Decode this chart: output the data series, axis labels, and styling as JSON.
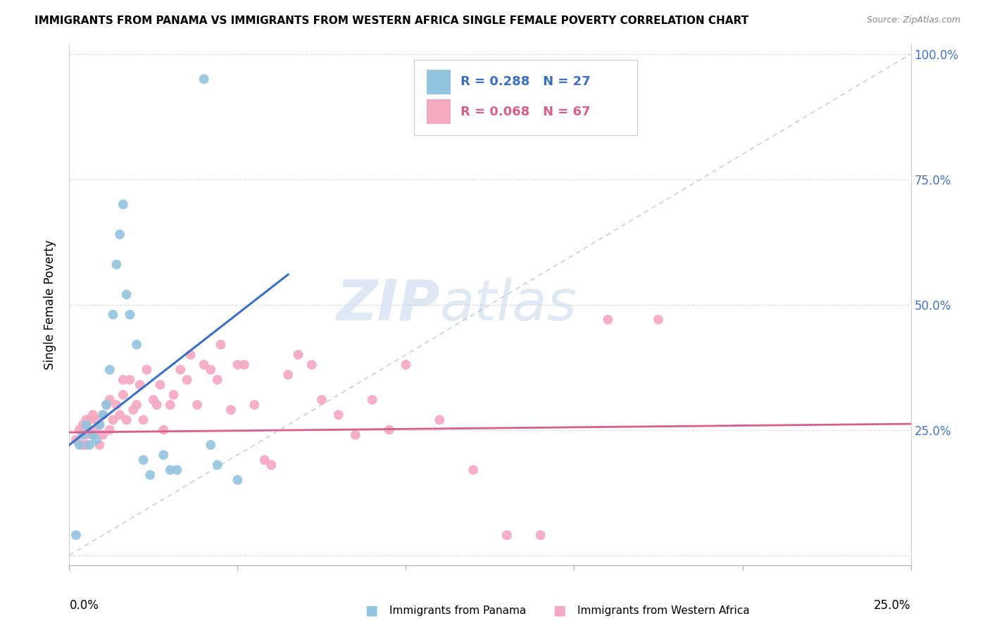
{
  "title": "IMMIGRANTS FROM PANAMA VS IMMIGRANTS FROM WESTERN AFRICA SINGLE FEMALE POVERTY CORRELATION CHART",
  "source": "Source: ZipAtlas.com",
  "ylabel": "Single Female Poverty",
  "legend_label1": "Immigrants from Panama",
  "legend_label2": "Immigrants from Western Africa",
  "legend_r1": "R = 0.288",
  "legend_n1": "N = 27",
  "legend_r2": "R = 0.068",
  "legend_n2": "N = 67",
  "watermark_zip": "ZIP",
  "watermark_atlas": "atlas",
  "xlim": [
    0.0,
    0.25
  ],
  "ylim": [
    -0.02,
    1.02
  ],
  "color_panama": "#93c4e0",
  "color_w_africa": "#f4a8bf",
  "color_line_panama": "#3a6fc4",
  "color_line_w_africa": "#d95f8a",
  "color_diagonal": "#b0b8d8",
  "panama_x": [
    0.002,
    0.003,
    0.004,
    0.005,
    0.006,
    0.007,
    0.008,
    0.009,
    0.01,
    0.011,
    0.012,
    0.013,
    0.014,
    0.015,
    0.016,
    0.017,
    0.018,
    0.02,
    0.022,
    0.024,
    0.028,
    0.03,
    0.032,
    0.04,
    0.042,
    0.044,
    0.05
  ],
  "panama_y": [
    0.04,
    0.22,
    0.24,
    0.26,
    0.22,
    0.24,
    0.23,
    0.26,
    0.28,
    0.3,
    0.37,
    0.48,
    0.58,
    0.64,
    0.7,
    0.52,
    0.48,
    0.42,
    0.19,
    0.16,
    0.2,
    0.17,
    0.17,
    0.95,
    0.22,
    0.18,
    0.15
  ],
  "w_africa_x": [
    0.002,
    0.003,
    0.004,
    0.004,
    0.005,
    0.005,
    0.005,
    0.006,
    0.006,
    0.007,
    0.007,
    0.008,
    0.008,
    0.009,
    0.009,
    0.01,
    0.01,
    0.011,
    0.012,
    0.012,
    0.013,
    0.014,
    0.015,
    0.016,
    0.016,
    0.017,
    0.018,
    0.019,
    0.02,
    0.021,
    0.022,
    0.023,
    0.025,
    0.026,
    0.027,
    0.028,
    0.03,
    0.031,
    0.033,
    0.035,
    0.036,
    0.038,
    0.04,
    0.042,
    0.044,
    0.045,
    0.048,
    0.05,
    0.052,
    0.055,
    0.058,
    0.06,
    0.065,
    0.068,
    0.072,
    0.075,
    0.08,
    0.085,
    0.09,
    0.095,
    0.1,
    0.11,
    0.12,
    0.13,
    0.14,
    0.16,
    0.175
  ],
  "w_africa_y": [
    0.23,
    0.25,
    0.22,
    0.26,
    0.24,
    0.27,
    0.22,
    0.25,
    0.27,
    0.24,
    0.28,
    0.25,
    0.27,
    0.22,
    0.26,
    0.24,
    0.28,
    0.3,
    0.25,
    0.31,
    0.27,
    0.3,
    0.28,
    0.32,
    0.35,
    0.27,
    0.35,
    0.29,
    0.3,
    0.34,
    0.27,
    0.37,
    0.31,
    0.3,
    0.34,
    0.25,
    0.3,
    0.32,
    0.37,
    0.35,
    0.4,
    0.3,
    0.38,
    0.37,
    0.35,
    0.42,
    0.29,
    0.38,
    0.38,
    0.3,
    0.19,
    0.18,
    0.36,
    0.4,
    0.38,
    0.31,
    0.28,
    0.24,
    0.31,
    0.25,
    0.38,
    0.27,
    0.17,
    0.04,
    0.04,
    0.47,
    0.47
  ],
  "panama_line_x": [
    0.0,
    0.065
  ],
  "panama_line_y": [
    0.22,
    0.56
  ],
  "wa_line_x": [
    0.0,
    0.25
  ],
  "wa_line_y": [
    0.245,
    0.262
  ],
  "xtick_positions": [
    0.0,
    0.05,
    0.1,
    0.15,
    0.2,
    0.25
  ],
  "ytick_positions": [
    0.0,
    0.25,
    0.5,
    0.75,
    1.0
  ],
  "ytick_labels_right": [
    "",
    "25.0%",
    "50.0%",
    "75.0%",
    "100.0%"
  ]
}
